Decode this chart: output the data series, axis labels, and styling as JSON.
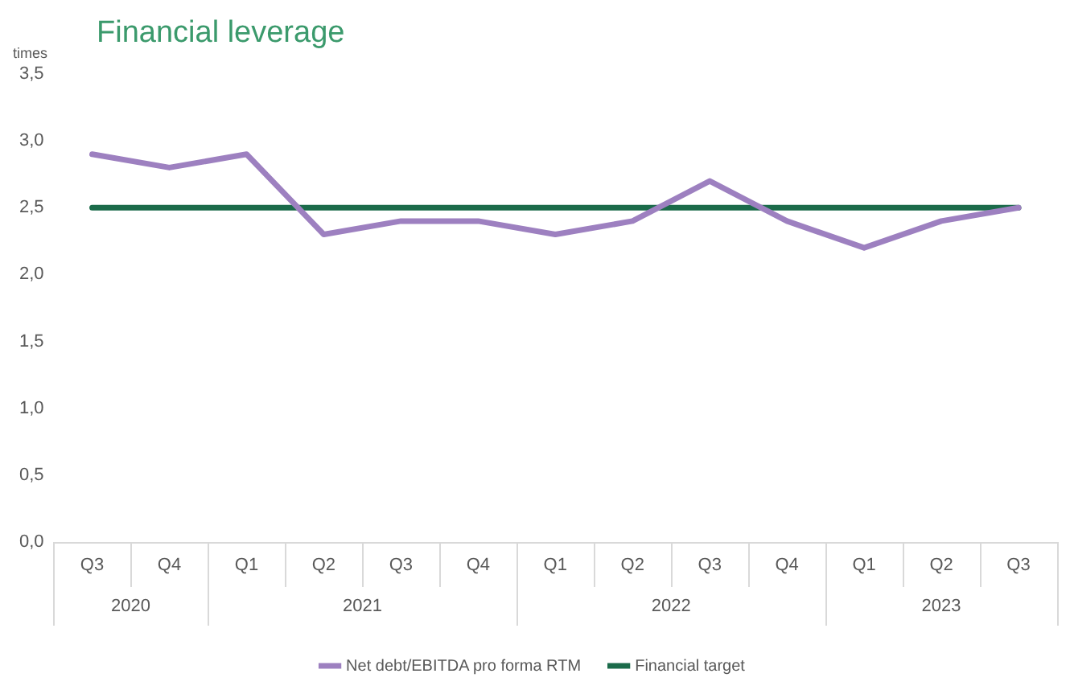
{
  "chart_data": {
    "type": "line",
    "title": "Financial leverage",
    "ylabel": "times",
    "categories": [
      "Q3",
      "Q4",
      "Q1",
      "Q2",
      "Q3",
      "Q4",
      "Q1",
      "Q2",
      "Q3",
      "Q4",
      "Q1",
      "Q2",
      "Q3"
    ],
    "series": [
      {
        "name": "Net debt/EBITDA pro forma RTM",
        "color": "#9d80c0",
        "values": [
          2.9,
          2.8,
          2.9,
          2.3,
          2.4,
          2.4,
          2.3,
          2.4,
          2.7,
          2.4,
          2.2,
          2.4,
          2.5
        ]
      },
      {
        "name": "Financial target",
        "color": "#1b6b4a",
        "values": [
          2.5,
          2.5,
          2.5,
          2.5,
          2.5,
          2.5,
          2.5,
          2.5,
          2.5,
          2.5,
          2.5,
          2.5,
          2.5
        ]
      }
    ],
    "annotations": [
      "2020",
      "2021",
      "2022",
      "2023"
    ],
    "ylim": [
      0,
      3.5
    ],
    "yticks": [
      {
        "value": 0,
        "label": "0,0"
      },
      {
        "value": 0.5,
        "label": "0,5"
      },
      {
        "value": 1,
        "label": "1,0"
      },
      {
        "value": 1.5,
        "label": "1,5"
      },
      {
        "value": 2,
        "label": "2,0"
      },
      {
        "value": 2.5,
        "label": "2,5"
      },
      {
        "value": 3,
        "label": "3,0"
      },
      {
        "value": 3.5,
        "label": "3,5"
      }
    ],
    "grid": false,
    "legend": "bottom",
    "marker": "none",
    "line_style": "solid"
  }
}
